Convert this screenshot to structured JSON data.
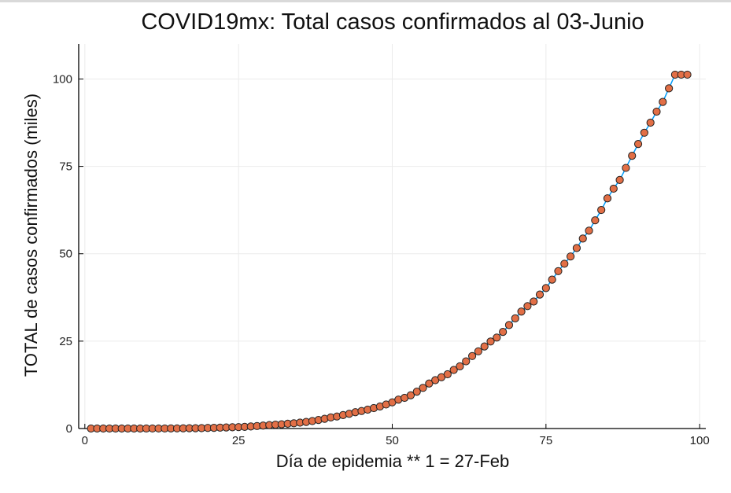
{
  "chart_data": {
    "type": "scatter",
    "title": "COVID19mx: Total casos confirmados al 03-Junio",
    "xlabel": "Día de epidemia ** 1 = 27-Feb",
    "ylabel": "TOTAL de casos confirmados (miles)",
    "xlim": [
      -1,
      101
    ],
    "ylim": [
      0,
      110
    ],
    "xticks": [
      0,
      25,
      50,
      75,
      100
    ],
    "yticks": [
      0,
      25,
      50,
      75,
      100
    ],
    "grid": true,
    "legend": "none",
    "marker_color": "#e26f46",
    "marker_edge_color": "#222222",
    "line_color": "#009af9",
    "series": [
      {
        "x": [
          1,
          2,
          3,
          4,
          5,
          6,
          7,
          8,
          9,
          10,
          11,
          12,
          13,
          14,
          15,
          16,
          17,
          18,
          19,
          20,
          21,
          22,
          23,
          24,
          25,
          26,
          27,
          28,
          29,
          30,
          31,
          32,
          33,
          34,
          35,
          36,
          37,
          38,
          39,
          40,
          41,
          42,
          43,
          44,
          45,
          46,
          47,
          48,
          49,
          50,
          51,
          52,
          53,
          54,
          55,
          56,
          57,
          58,
          59,
          60,
          61,
          62,
          63,
          64,
          65,
          66,
          67,
          68,
          69,
          70,
          71,
          72,
          73,
          74,
          75,
          76,
          77,
          78,
          79,
          80,
          81,
          82,
          83,
          84,
          85,
          86,
          87,
          88,
          89,
          90,
          91,
          92,
          93,
          94,
          95,
          96,
          97,
          98
        ],
        "values": [
          0.001,
          0.004,
          0.005,
          0.005,
          0.005,
          0.005,
          0.006,
          0.007,
          0.007,
          0.008,
          0.011,
          0.012,
          0.015,
          0.026,
          0.041,
          0.053,
          0.082,
          0.093,
          0.118,
          0.164,
          0.203,
          0.251,
          0.316,
          0.367,
          0.405,
          0.475,
          0.585,
          0.717,
          0.848,
          0.993,
          1.094,
          1.215,
          1.378,
          1.51,
          1.688,
          1.89,
          2.143,
          2.439,
          2.785,
          3.181,
          3.441,
          3.844,
          4.219,
          4.661,
          5.014,
          5.399,
          5.847,
          6.297,
          6.875,
          7.497,
          8.261,
          8.772,
          9.501,
          10.544,
          11.633,
          12.872,
          13.842,
          14.677,
          15.529,
          16.752,
          17.799,
          19.224,
          20.739,
          22.088,
          23.471,
          24.905,
          26.025,
          27.634,
          29.616,
          31.522,
          33.46,
          35.022,
          36.327,
          38.324,
          40.186,
          42.595,
          45.032,
          47.144,
          49.219,
          51.633,
          54.346,
          56.594,
          59.567,
          62.527,
          65.856,
          68.62,
          71.105,
          74.56,
          78.023,
          81.4,
          84.627,
          87.512,
          90.664,
          93.435,
          97.326,
          101.238,
          101.238,
          101.238
        ]
      }
    ]
  }
}
